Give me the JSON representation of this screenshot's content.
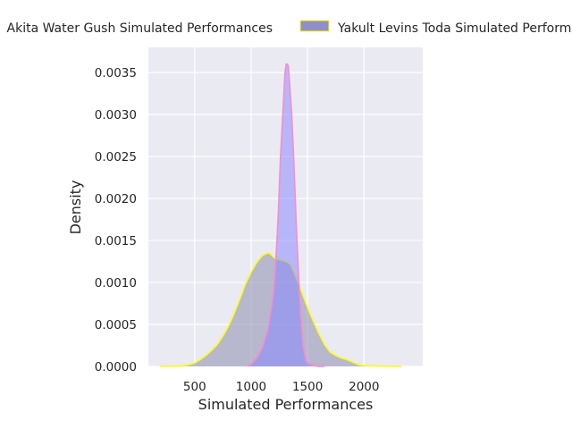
{
  "chart_data": {
    "type": "area",
    "title": "",
    "xlabel": "Simulated Performances",
    "ylabel": "Density",
    "xlim": [
      90,
      2520
    ],
    "ylim": [
      0,
      0.0038
    ],
    "xticks": [
      500,
      1000,
      1500,
      2000
    ],
    "xtick_labels": [
      "500",
      "1000",
      "1500",
      "2000"
    ],
    "yticks": [
      0,
      0.0005,
      0.001,
      0.0015,
      0.002,
      0.0025,
      0.003,
      0.0035
    ],
    "ytick_labels": [
      "0.0000",
      "0.0005",
      "0.0010",
      "0.0015",
      "0.0020",
      "0.0025",
      "0.0030",
      "0.0035"
    ],
    "grid": true,
    "legend_position": "top, outside plot",
    "series": [
      {
        "name": "Akita Water Gush Simulated Performances",
        "fill": "#8c8caf",
        "fill_opacity": 0.55,
        "line": "#ffff00",
        "x": [
          190,
          300,
          400,
          450,
          500,
          550,
          600,
          650,
          700,
          750,
          800,
          850,
          900,
          950,
          1000,
          1050,
          1100,
          1130,
          1150,
          1170,
          1200,
          1220,
          1250,
          1280,
          1300,
          1320,
          1350,
          1380,
          1420,
          1460,
          1500,
          1550,
          1600,
          1650,
          1700,
          1750,
          1800,
          1850,
          1900,
          1950,
          2000,
          2100,
          2200,
          2300,
          2330
        ],
        "y": [
          0.0,
          2e-06,
          8e-06,
          2e-05,
          4e-05,
          8e-05,
          0.00013,
          0.00019,
          0.00026,
          0.00036,
          0.00048,
          0.00063,
          0.0008,
          0.00098,
          0.00112,
          0.00124,
          0.00132,
          0.00134,
          0.00135,
          0.00134,
          0.0013,
          0.00128,
          0.00127,
          0.00126,
          0.00125,
          0.00124,
          0.00121,
          0.00112,
          0.00099,
          0.00084,
          0.0007,
          0.00054,
          0.00039,
          0.00026,
          0.00017,
          0.00013,
          0.0001,
          8e-05,
          5e-05,
          2e-05,
          1e-05,
          5e-06,
          2e-06,
          1e-06,
          0.0
        ]
      },
      {
        "name": "Yakult Levins Toda Simulated Performances",
        "fill": "#8a8aff",
        "fill_opacity": 0.55,
        "line": "#ff88cc",
        "x": [
          970,
          1000,
          1050,
          1100,
          1150,
          1180,
          1200,
          1220,
          1240,
          1260,
          1280,
          1300,
          1310,
          1320,
          1330,
          1340,
          1360,
          1380,
          1400,
          1420,
          1440,
          1460,
          1480,
          1500,
          1550,
          1600,
          1650
        ],
        "y": [
          0.0,
          3e-05,
          0.0001,
          0.00022,
          0.00045,
          0.0007,
          0.0009,
          0.0013,
          0.0018,
          0.0025,
          0.003,
          0.0035,
          0.0036,
          0.0036,
          0.00358,
          0.0034,
          0.003,
          0.0024,
          0.0017,
          0.0011,
          0.0006,
          0.00025,
          0.0001,
          4e-05,
          1e-05,
          0.0,
          0.0
        ]
      }
    ]
  }
}
